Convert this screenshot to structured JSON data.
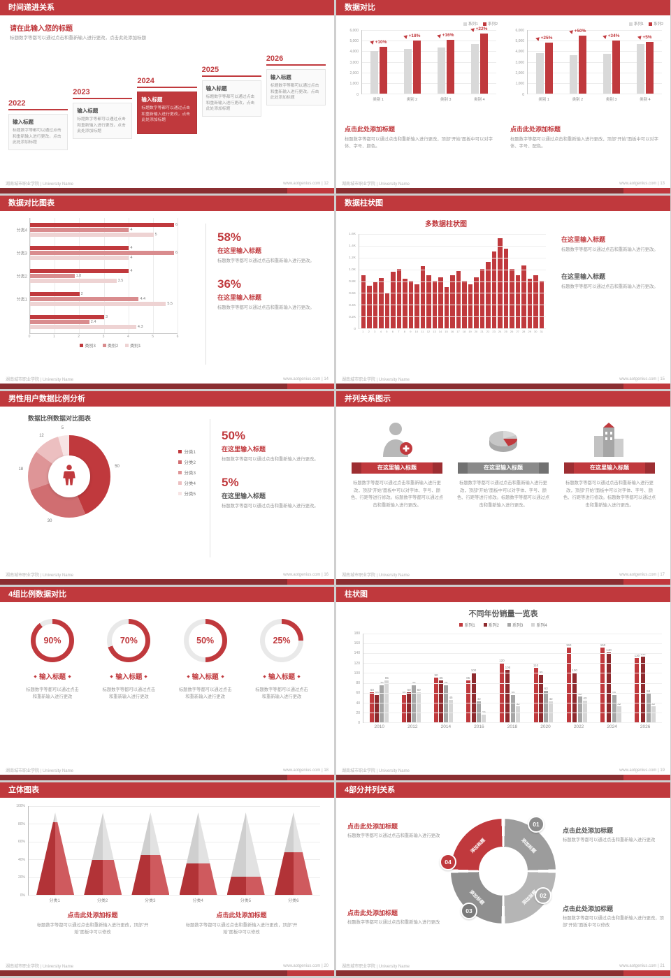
{
  "page": {
    "background": "#cfcfcf",
    "accent": "#c0393d",
    "footer_bar_color": "#8a2e31",
    "footer_left": "湖南城市职业学院 | University Name",
    "footer_site": "www.aotgenius.com"
  },
  "slides": [
    {
      "page_no": "12",
      "footer_right": "www.aotgenius.com | 12",
      "title": "时间递进关系",
      "heading": "请在此输入您的标题",
      "subtext": "标题数字等都可以通过点击和重新输入进行更改，点击此处添加标题",
      "items": [
        {
          "year": "2022",
          "label": "输入标题",
          "text": "标题数字等都可以通过点击和重新输入进行更改，点击此处添加标题",
          "highlight": false
        },
        {
          "year": "2023",
          "label": "输入标题",
          "text": "标题数字等都可以通过点击和重新输入进行更改，点击此处添加标题",
          "highlight": false
        },
        {
          "year": "2024",
          "label": "输入标题",
          "text": "标题数字等都可以通过点击和重新输入进行更改，点击此处添加标题",
          "highlight": true
        },
        {
          "year": "2025",
          "label": "输入标题",
          "text": "标题数字等都可以通过点击和重新输入进行更改，点击此处添加标题",
          "highlight": false
        },
        {
          "year": "2026",
          "label": "输入标题",
          "text": "标题数字等都可以通过点击和重新输入进行更改，点击此处添加标题",
          "highlight": false
        }
      ]
    },
    {
      "page_no": "13",
      "footer_right": "www.aotgenius.com | 13",
      "title": "数据对比",
      "charts": [
        {
          "type": "bar",
          "legend": [
            "系列1",
            "系列2"
          ],
          "categories": [
            "类别 1",
            "类别 2",
            "类别 3",
            "类别 4"
          ],
          "series1": [
            4000,
            4200,
            4300,
            4600
          ],
          "series2": [
            4400,
            4950,
            5000,
            5600
          ],
          "growth": [
            "+10%",
            "+18%",
            "+16%",
            "+22%"
          ],
          "ymax": 6000,
          "yticks": [
            "6,000",
            "5,000",
            "4,000",
            "3,000",
            "2,000",
            "1,000",
            "0"
          ],
          "caption_title": "点击此处添加标题",
          "caption_text": "标题数字等都可以通过点击和重新输入进行更改，顶部“开始”面板中可以对字体、字号、颜色。"
        },
        {
          "type": "bar",
          "legend": [
            "系列1",
            "系列2"
          ],
          "categories": [
            "类别 1",
            "类别 2",
            "类别 3",
            "类别 4"
          ],
          "series1": [
            3800,
            3600,
            3700,
            4600
          ],
          "series2": [
            4750,
            5400,
            4950,
            4850
          ],
          "growth": [
            "+25%",
            "+50%",
            "+34%",
            "+5%"
          ],
          "ymax": 6000,
          "yticks": [
            "6,000",
            "5,000",
            "4,000",
            "3,000",
            "2,000",
            "1,000",
            "0"
          ],
          "caption_title": "点击此处添加标题",
          "caption_text": "标题数字等都可以通过点击和重新输入进行更改，顶部“开始”面板中可以对字体、字号、配色。"
        }
      ]
    },
    {
      "page_no": "14",
      "footer_right": "www.aotgenius.com | 14",
      "title": "数据对比图表",
      "chart": {
        "type": "bar-horizontal",
        "categories": [
          "分类4",
          "分类3",
          "分类2",
          "分类1",
          ""
        ],
        "series": [
          {
            "name": "类别3",
            "color": "#c0393d",
            "values": [
              6,
              4,
              4,
              2,
              3
            ]
          },
          {
            "name": "类别2",
            "color": "#d98c8e",
            "values": [
              4,
              6,
              1.8,
              4.4,
              2.4
            ]
          },
          {
            "name": "类别1",
            "color": "#eed3d3",
            "values": [
              5,
              4,
              3.5,
              5.5,
              4.3
            ]
          }
        ],
        "xmax": 6,
        "xticks": [
          "0",
          "1",
          "2",
          "3",
          "4",
          "5",
          "6"
        ]
      },
      "stats": [
        {
          "value": "58%",
          "label": "在这里输入标题",
          "text": "标题数字等都可以通过点击和重新输入进行更改。"
        },
        {
          "value": "36%",
          "label": "在这里输入标题",
          "text": "标题数字等都可以通过点击和重新输入进行更改。"
        }
      ]
    },
    {
      "page_no": "15",
      "footer_right": "www.aotgenius.com | 15",
      "title": "数据柱状图",
      "chart": {
        "type": "bar",
        "title": "多数据柱状图",
        "x": [
          "1",
          "2",
          "3",
          "4",
          "5",
          "6",
          "7",
          "8",
          "9",
          "10",
          "11",
          "12",
          "13",
          "14",
          "15",
          "16",
          "17",
          "18",
          "19",
          "20",
          "21",
          "22",
          "23",
          "24",
          "25",
          "26",
          "27",
          "28",
          "29",
          "30",
          "31"
        ],
        "values": [
          0.9,
          0.72,
          0.78,
          0.85,
          0.6,
          0.95,
          1.0,
          0.84,
          0.8,
          0.74,
          1.05,
          0.9,
          0.8,
          0.86,
          0.7,
          0.9,
          0.96,
          0.8,
          0.74,
          0.86,
          1.0,
          1.12,
          1.3,
          1.52,
          1.34,
          1.0,
          0.9,
          1.06,
          0.84,
          0.9,
          0.8
        ],
        "ymax": 1.6,
        "yticks": [
          "1.6K",
          "1.4K",
          "1.2K",
          "1.0K",
          "0.8K",
          "0.6K",
          "0.4K",
          "0.2K",
          "0"
        ]
      },
      "stats": [
        {
          "label": "在这里输入标题",
          "text": "标题数字等都可以通过点击和重新输入进行更改。"
        },
        {
          "label": "在这里输入标题",
          "text": "标题数字等都可以通过点击和重新输入进行更改。"
        }
      ]
    },
    {
      "page_no": "16",
      "footer_right": "www.aotgenius.com | 16",
      "title": "男性用户数据比例分析",
      "chart": {
        "type": "donut",
        "title": "数据比例数据对比图表",
        "center_icon": "male-user-icon",
        "segments": [
          {
            "label": "分类1",
            "value": 50,
            "color": "#c0393d"
          },
          {
            "label": "分类2",
            "value": 30,
            "color": "#d06e71"
          },
          {
            "label": "分类3",
            "value": 18,
            "color": "#de9597"
          },
          {
            "label": "分类4",
            "value": 12,
            "color": "#ecbfc0"
          },
          {
            "label": "分类5",
            "value": 5,
            "color": "#f7e4e4"
          }
        ]
      },
      "stats": [
        {
          "value": "50%",
          "label": "在这里输入标题",
          "text": "标题数字等都可以通过点击和重新输入进行更改。"
        },
        {
          "value": "5%",
          "label": "在这里输入标题",
          "text": "标题数字等都可以通过点击和重新输入进行更改。"
        }
      ]
    },
    {
      "page_no": "17",
      "footer_right": "www.aotgenius.com | 17",
      "title": "并列关系图示",
      "columns": [
        {
          "icon": "person-plus-icon",
          "label": "在这里输入标题",
          "style": "red",
          "text": "标题数字等都可以通过点击和重新输入进行更改，顶部“开始”面板中可以对字体、字号、颜色、行距等进行修改。标题数字等都可以通过点击和重新输入进行更改。"
        },
        {
          "icon": "pie-3d-icon",
          "label": "在这里输入标题",
          "style": "gray",
          "text": "标题数字等都可以通过点击和重新输入进行更改，顶部“开始”面板中可以对字体、字号、颜色、行距等进行修改。标题数字等都可以通过点击和重新输入进行更改。"
        },
        {
          "icon": "building-icon",
          "label": "在这里输入标题",
          "style": "red",
          "text": "标题数字等都可以通过点击和重新输入进行更改，顶部“开始”面板中可以对字体、字号、颜色、行距等进行修改。标题数字等都可以通过点击和重新输入进行更改。"
        }
      ]
    },
    {
      "page_no": "18",
      "footer_right": "www.aotgenius.com | 18",
      "title": "4组比例数据对比",
      "gauges": [
        {
          "percent": 90,
          "label": "输入标题",
          "text": "标题数字等都可以通过点击和重新输入进行更改"
        },
        {
          "percent": 70,
          "label": "输入标题",
          "text": "标题数字等都可以通过点击和重新输入进行更改"
        },
        {
          "percent": 50,
          "label": "输入标题",
          "text": "标题数字等都可以通过点击和重新输入进行更改"
        },
        {
          "percent": 25,
          "label": "输入标题",
          "text": "标题数字等都可以通过点击和重新输入进行更改"
        }
      ]
    },
    {
      "page_no": "19",
      "footer_right": "www.aotgenius.com | 19",
      "title": "柱状图",
      "chart": {
        "type": "bar",
        "title": "不同年份销量一览表",
        "categories": [
          "2010",
          "2012",
          "2014",
          "2016",
          "2018",
          "2020",
          "2022",
          "2024",
          "2026"
        ],
        "series": [
          {
            "name": "系列1",
            "color": "#c0393d",
            "values": [
              60,
              55,
              90,
              85,
              120,
              110,
              150,
              150,
              130
            ]
          },
          {
            "name": "系列2",
            "color": "#8f2a2e",
            "values": [
              55,
              60,
              85,
              100,
              105,
              95,
              100,
              140,
              132
            ]
          },
          {
            "name": "系列3",
            "color": "#a6a6a6",
            "values": [
              75,
              75,
              75,
              42,
              55,
              63,
              52,
              55,
              58
            ]
          },
          {
            "name": "系列4",
            "color": "#d6d6d6",
            "values": [
              85,
              60,
              45,
              15,
              32,
              42,
              43,
              32,
              32
            ]
          }
        ],
        "ymax": 180,
        "yticks": [
          "180",
          "160",
          "140",
          "120",
          "100",
          "80",
          "60",
          "40",
          "20",
          "0"
        ]
      }
    },
    {
      "page_no": "20",
      "footer_right": "www.aotgenius.com | 20",
      "title": "立体图表",
      "chart": {
        "type": "cone",
        "categories": [
          "分类1",
          "分类2",
          "分类3",
          "分类4",
          "分类5",
          "分类6"
        ],
        "values": [
          88,
          42,
          48,
          38,
          22,
          52
        ],
        "yticks": [
          "100%",
          "80%",
          "60%",
          "40%",
          "20%",
          "0%"
        ]
      },
      "captions": [
        {
          "title": "点击此处添加标题",
          "text": "标题数字等都可以通过点击和重新输入进行更改，顶部“开始”面板中可以修改"
        },
        {
          "title": "点击此处添加标题",
          "text": "标题数字等都可以通过点击和重新输入进行更改，顶部“开始”面板中可以修改"
        }
      ]
    },
    {
      "page_no": "21",
      "footer_right": "www.aotgenius.com | 21",
      "title": "4部分并列关系",
      "ring": {
        "segments": [
          {
            "num": "01",
            "label": "添加标题",
            "color": "#9c9c9c",
            "badge": "#8c8c8c"
          },
          {
            "num": "02",
            "label": "添加标题",
            "color": "#b5b5b5",
            "badge": "#ababab"
          },
          {
            "num": "03",
            "label": "添加标题",
            "color": "#8f8f8f",
            "badge": "#7a7a7a"
          },
          {
            "num": "04",
            "label": "添加标题",
            "color": "#c0393d",
            "badge": "#c0393d"
          }
        ]
      },
      "captions": [
        {
          "title": "点击此处添加标题",
          "text": "标题数字等都可以通过点击和重新输入进行更改"
        },
        {
          "title": "点击此处添加标题",
          "text": "标题数字等都可以通过点击和重新输入进行更改"
        },
        {
          "title": "点击此处添加标题",
          "text": "标题数字等都可以通过点击和重新输入进行更改"
        },
        {
          "title": "点击此处添加标题",
          "text": "标题数字等都可以通过点击和重新输入进行更改，顶部“开始”面板中可以修改"
        }
      ]
    }
  ]
}
